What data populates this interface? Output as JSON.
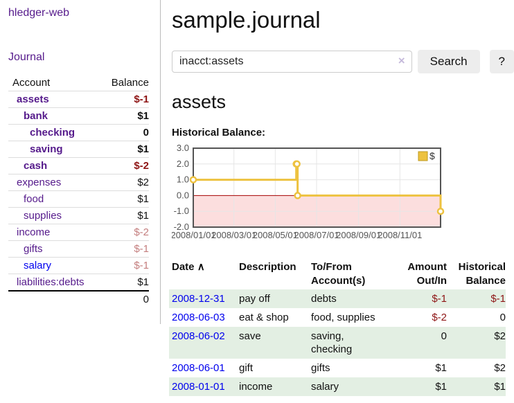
{
  "sidebar": {
    "app_title": "hledger-web",
    "journal_link": "Journal",
    "accounts_header": {
      "account": "Account",
      "balance": "Balance"
    },
    "accounts": [
      {
        "name": "assets",
        "depth": 1,
        "bold": true,
        "balance": "$-1",
        "balance_style": "neg"
      },
      {
        "name": "bank",
        "depth": 2,
        "bold": true,
        "balance": "$1",
        "balance_style": "pos"
      },
      {
        "name": "checking",
        "depth": 3,
        "bold": true,
        "balance": "0",
        "balance_style": "pos"
      },
      {
        "name": "saving",
        "depth": 3,
        "bold": true,
        "balance": "$1",
        "balance_style": "pos"
      },
      {
        "name": "cash",
        "depth": 2,
        "bold": true,
        "balance": "$-2",
        "balance_style": "neg"
      },
      {
        "name": "expenses",
        "depth": 1,
        "bold": false,
        "balance": "$2",
        "balance_style": "pos"
      },
      {
        "name": "food",
        "depth": 2,
        "bold": false,
        "balance": "$1",
        "balance_style": "pos"
      },
      {
        "name": "supplies",
        "depth": 2,
        "bold": false,
        "balance": "$1",
        "balance_style": "pos"
      },
      {
        "name": "income",
        "depth": 1,
        "bold": false,
        "balance": "$-2",
        "balance_style": "neg-muted"
      },
      {
        "name": "gifts",
        "depth": 2,
        "bold": false,
        "balance": "$-1",
        "balance_style": "neg-muted"
      },
      {
        "name": "salary",
        "depth": 2,
        "bold": false,
        "link_style": "unvisited",
        "balance": "$-1",
        "balance_style": "neg-muted"
      },
      {
        "name": "liabilities:debts",
        "depth": 1,
        "bold": false,
        "balance": "$1",
        "balance_style": "pos"
      }
    ],
    "total": "0"
  },
  "main": {
    "title": "sample.journal",
    "search": {
      "value": "inacct:assets",
      "clear_icon": "×",
      "button_label": "Search",
      "help_label": "?"
    },
    "account_heading": "assets"
  },
  "chart_data": {
    "type": "line",
    "title": "Historical Balance:",
    "step": true,
    "x_type": "date",
    "x_range": [
      "2008-01-01",
      "2008-12-31"
    ],
    "ylim": [
      -2,
      3
    ],
    "y_ticks": [
      {
        "value": 3,
        "label": "3.0"
      },
      {
        "value": 2,
        "label": "2.0"
      },
      {
        "value": 1,
        "label": "1.0"
      },
      {
        "value": 0,
        "label": "0.0"
      },
      {
        "value": -1,
        "label": "-1.0"
      },
      {
        "value": -2,
        "label": "-2.0"
      }
    ],
    "x_ticks": [
      {
        "date": "2008-01-01",
        "label": "2008/01/01"
      },
      {
        "date": "2008-03-01",
        "label": "2008/03/01"
      },
      {
        "date": "2008-05-01",
        "label": "2008/05/01"
      },
      {
        "date": "2008-07-01",
        "label": "2008/07/01"
      },
      {
        "date": "2008-09-01",
        "label": "2008/09/01"
      },
      {
        "date": "2008-11-01",
        "label": "2008/11/01"
      }
    ],
    "series": [
      {
        "name": "$",
        "color": "#edc240",
        "points": [
          {
            "date": "2008-01-01",
            "value": 1
          },
          {
            "date": "2008-06-01",
            "value": 2
          },
          {
            "date": "2008-06-02",
            "value": 2
          },
          {
            "date": "2008-06-03",
            "value": 0
          },
          {
            "date": "2008-12-31",
            "value": -1
          }
        ]
      }
    ],
    "legend": {
      "label": "$",
      "position": "top-right"
    },
    "grid": true,
    "border_color": "#545454",
    "grid_color": "#e6e6e6",
    "negative_region_color": "#fcdede",
    "zero_line_color": "#a40000"
  },
  "register": {
    "headers": [
      {
        "label": "Date",
        "sort_icon": "∧"
      },
      {
        "label": "Description"
      },
      {
        "label": "To/From\nAccount(s)"
      },
      {
        "label": "Amount\nOut/In"
      },
      {
        "label": "Historical\nBalance"
      }
    ],
    "rows": [
      {
        "date": "2008-12-31",
        "description": "pay off",
        "accounts": "debts",
        "amount": "$-1",
        "amount_style": "neg",
        "balance": "$-1",
        "balance_style": "neg"
      },
      {
        "date": "2008-06-03",
        "description": "eat & shop",
        "accounts": "food, supplies",
        "amount": "$-2",
        "amount_style": "neg",
        "balance": "0",
        "balance_style": "pos"
      },
      {
        "date": "2008-06-02",
        "description": "save",
        "accounts": "saving,\nchecking",
        "amount": "0",
        "amount_style": "pos",
        "balance": "$2",
        "balance_style": "pos"
      },
      {
        "date": "2008-06-01",
        "description": "gift",
        "accounts": "gifts",
        "amount": "$1",
        "amount_style": "pos",
        "balance": "$2",
        "balance_style": "pos"
      },
      {
        "date": "2008-01-01",
        "description": "income",
        "accounts": "salary",
        "amount": "$1",
        "amount_style": "pos",
        "balance": "$1",
        "balance_style": "pos"
      }
    ]
  }
}
